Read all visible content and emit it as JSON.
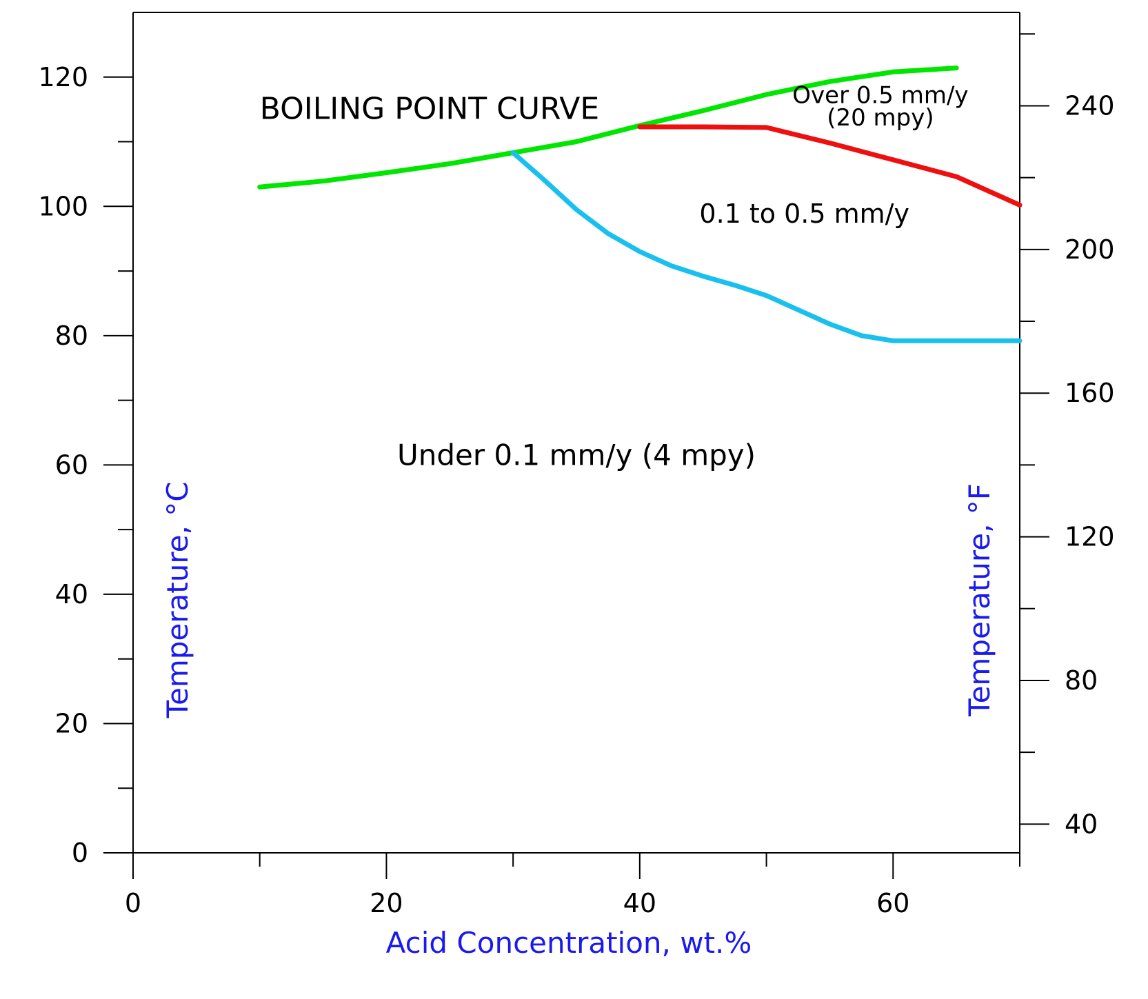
{
  "chart_data": {
    "type": "line",
    "xlabel": "Acid Concentration, wt.%",
    "ylabel_left": "Temperature, °C",
    "ylabel_right": "Temperature, °F",
    "xlim": [
      0,
      70
    ],
    "ylim": [
      0,
      130
    ],
    "ylim_right_f": [
      32,
      266
    ],
    "x_ticks_major": [
      0,
      20,
      40,
      60
    ],
    "x_ticks_minor": [
      10,
      30,
      50,
      70
    ],
    "y_ticks_major": [
      0,
      20,
      40,
      60,
      80,
      100,
      120
    ],
    "y_ticks_minor": [
      10,
      30,
      50,
      70,
      90,
      110
    ],
    "y_right_ticks_major": [
      40,
      80,
      120,
      160,
      200,
      240
    ],
    "y_right_ticks_minor": [
      60,
      100,
      140,
      180,
      220,
      260
    ],
    "grid": false,
    "colors": {
      "boiling": "#00e600",
      "iso_01": "#19c0ee",
      "iso_05": "#ee0f0f",
      "axis_title": "#1a1aee",
      "frame": "#000000"
    },
    "series": [
      {
        "name": "BOILING POINT CURVE",
        "color": "#00e600",
        "x": [
          10,
          15,
          20,
          25,
          30,
          35,
          40,
          45,
          50,
          55,
          60,
          65
        ],
        "y": [
          103,
          103.9,
          105.2,
          106.6,
          108.3,
          110,
          112.5,
          114.8,
          117.3,
          119.3,
          120.8,
          121.4
        ]
      },
      {
        "color": "#19c0ee",
        "x": [
          30,
          32.5,
          35,
          37.5,
          40,
          42.5,
          45,
          47.5,
          50,
          52.5,
          55,
          57.5,
          60,
          65,
          70
        ],
        "y": [
          108.3,
          104,
          99.5,
          95.8,
          93,
          90.8,
          89.2,
          87.8,
          86.2,
          84,
          81.8,
          80,
          79.2,
          79.2,
          79.2
        ]
      },
      {
        "color": "#ee0f0f",
        "x": [
          40,
          45,
          50,
          55,
          60,
          65,
          70
        ],
        "y": [
          112.3,
          112.3,
          112.2,
          109.8,
          107.2,
          104.6,
          100.2
        ]
      }
    ],
    "annotations": [
      {
        "text": "BOILING POINT CURVE",
        "x": 10,
        "y": 113.5,
        "color": "#00e600"
      },
      {
        "text": "Over 0.5 mm/y",
        "x": 59,
        "y": 116,
        "color": "#000000"
      },
      {
        "text": "(20 mpy)",
        "x": 59,
        "y": 112.5,
        "color": "#000000"
      },
      {
        "text": "0.1 to 0.5 mm/y",
        "x": 53,
        "y": 97.5,
        "color": "#000000"
      },
      {
        "text": "Under 0.1 mm/y (4 mpy)",
        "x": 35,
        "y": 60,
        "color": "#000000"
      }
    ]
  }
}
